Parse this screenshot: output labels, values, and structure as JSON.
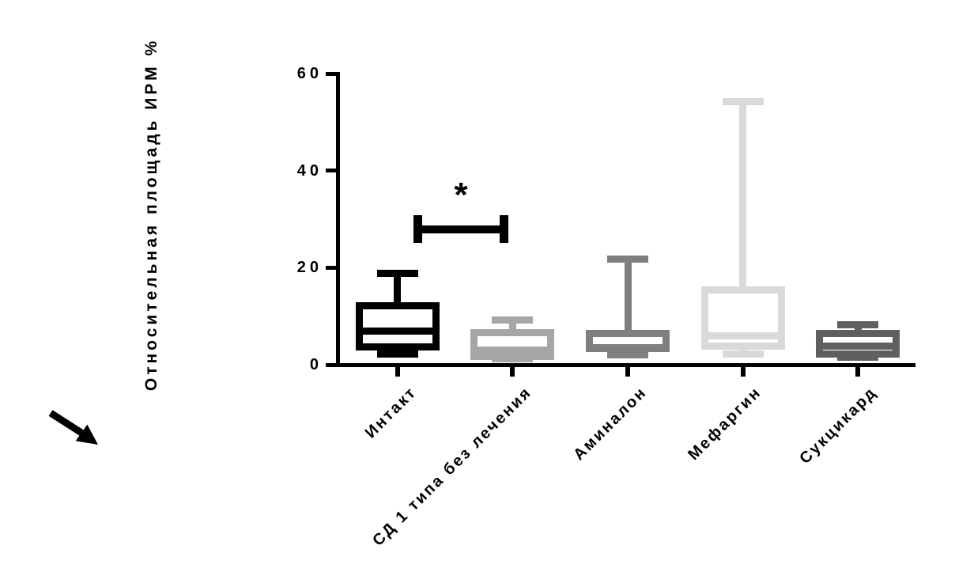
{
  "figure": {
    "background": "#ffffff",
    "corner_marker": "arrow-down-right"
  },
  "chart_data": {
    "type": "boxplot",
    "title": "",
    "xlabel": "",
    "ylabel": "Относительная площадь ИРМ %",
    "ylim": [
      0,
      60
    ],
    "yticks": [
      "0",
      "20",
      "40",
      "60"
    ],
    "ytick_values": [
      0,
      20,
      40,
      60
    ],
    "grid": false,
    "legend": "none",
    "axis_color": "#000000",
    "categories": [
      "Интакт",
      "СД 1 типа без лечения",
      "Аминалон",
      "Мефаргин",
      "Сукцикард"
    ],
    "series": [
      {
        "name": "Интакт",
        "color": "#000000",
        "min": 1.4,
        "q1": 2.9,
        "median": 6.9,
        "q3": 12.8,
        "max": 19.6
      },
      {
        "name": "СД 1 типа без лечения",
        "color": "#a6a6a6",
        "min": 0.5,
        "q1": 1.0,
        "median": 3.0,
        "q3": 7.4,
        "max": 10.0
      },
      {
        "name": "Аминалон",
        "color": "#7f7f7f",
        "min": 1.3,
        "q1": 2.6,
        "median": 3.5,
        "q3": 7.2,
        "max": 22.5
      },
      {
        "name": "Мефаргин",
        "color": "#d9d9d9",
        "min": 1.5,
        "q1": 3.1,
        "median": 5.9,
        "q3": 16.1,
        "max": 55.0
      },
      {
        "name": "Сукцикард",
        "color": "#606060",
        "min": 0.8,
        "q1": 1.5,
        "median": 3.9,
        "q3": 7.2,
        "max": 8.9
      }
    ],
    "annotations": [
      {
        "type": "significance-bracket",
        "label": "*",
        "from_category": "Интакт",
        "to_category": "СД 1 типа без лечения",
        "bar_value": 27.9,
        "cap_top_value": 30.8,
        "cap_bottom_value": 25.1,
        "label_value": 35.2
      }
    ]
  }
}
